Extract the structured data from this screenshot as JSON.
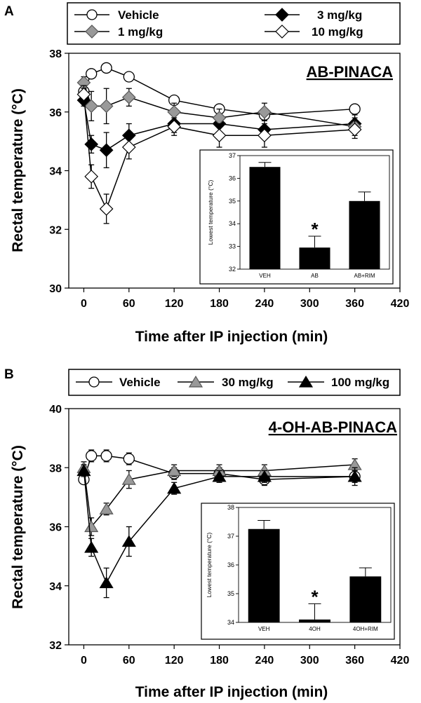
{
  "chart_data": [
    {
      "panel": "A",
      "type": "line",
      "title": "AB-PINACA",
      "xlabel": "Time after IP injection (min)",
      "ylabel": "Rectal temperature (°C)",
      "xlim": [
        -20,
        420
      ],
      "ylim": [
        30,
        38
      ],
      "xticks": [
        0,
        60,
        120,
        180,
        240,
        300,
        360,
        420
      ],
      "yticks": [
        30,
        32,
        34,
        36,
        38
      ],
      "legend": {
        "placement": "top",
        "entries": [
          "Vehicle",
          "3 mg/kg",
          "1 mg/kg",
          "10 mg/kg"
        ]
      },
      "series": [
        {
          "name": "Vehicle",
          "marker": "circle",
          "fill": "#ffffff",
          "x": [
            0,
            10,
            30,
            60,
            120,
            180,
            240,
            360
          ],
          "y": [
            36.7,
            37.3,
            37.5,
            37.2,
            36.4,
            36.1,
            35.9,
            36.1
          ],
          "err": [
            0.1,
            0.1,
            0.1,
            0.1,
            0.15,
            0.15,
            0.15,
            0.1
          ]
        },
        {
          "name": "3 mg/kg",
          "marker": "diamond",
          "fill": "#000000",
          "x": [
            0,
            10,
            30,
            60,
            120,
            180,
            240,
            360
          ],
          "y": [
            36.4,
            34.9,
            34.7,
            35.2,
            35.6,
            35.6,
            35.4,
            35.6
          ],
          "err": [
            0.2,
            0.3,
            0.6,
            0.4,
            0.3,
            0.3,
            0.3,
            0.3
          ]
        },
        {
          "name": "1 mg/kg",
          "marker": "diamond",
          "fill": "#999999",
          "x": [
            0,
            10,
            30,
            60,
            120,
            180,
            240,
            360
          ],
          "y": [
            37.0,
            36.2,
            36.2,
            36.5,
            36.0,
            35.8,
            36.0,
            35.5
          ],
          "err": [
            0.2,
            0.5,
            0.6,
            0.3,
            0.3,
            0.3,
            0.3,
            0.3
          ]
        },
        {
          "name": "10 mg/kg",
          "marker": "diamond",
          "fill": "#ffffff",
          "x": [
            0,
            10,
            30,
            60,
            120,
            180,
            240,
            360
          ],
          "y": [
            36.6,
            33.8,
            32.7,
            34.8,
            35.5,
            35.2,
            35.2,
            35.4
          ],
          "err": [
            0.3,
            0.4,
            0.5,
            0.4,
            0.3,
            0.4,
            0.4,
            0.3
          ]
        }
      ],
      "inset": {
        "type": "bar",
        "ylabel": "Lowest temperature (°C)",
        "ylim": [
          32,
          37
        ],
        "yticks": [
          32,
          33,
          34,
          35,
          36,
          37
        ],
        "categories": [
          "VEH",
          "AB",
          "AB+RIM"
        ],
        "values": [
          36.5,
          32.95,
          35.0
        ],
        "err": [
          0.2,
          0.5,
          0.4
        ],
        "annotation": "*",
        "annotation_category": "AB"
      }
    },
    {
      "panel": "B",
      "type": "line",
      "title": "4-OH-AB-PINACA",
      "xlabel": "Time after IP injection (min)",
      "ylabel": "Rectal temperature (°C)",
      "xlim": [
        -20,
        420
      ],
      "ylim": [
        32,
        40
      ],
      "xticks": [
        0,
        60,
        120,
        180,
        240,
        300,
        360,
        420
      ],
      "yticks": [
        32,
        34,
        36,
        38,
        40
      ],
      "legend": {
        "placement": "top",
        "entries": [
          "Vehicle",
          "30 mg/kg",
          "100 mg/kg"
        ]
      },
      "series": [
        {
          "name": "Vehicle",
          "marker": "circle",
          "fill": "#ffffff",
          "x": [
            0,
            10,
            30,
            60,
            120,
            180,
            240,
            360
          ],
          "y": [
            37.6,
            38.4,
            38.4,
            38.3,
            37.8,
            37.8,
            37.6,
            37.7
          ],
          "err": [
            0.1,
            0.2,
            0.2,
            0.2,
            0.2,
            0.2,
            0.2,
            0.2
          ]
        },
        {
          "name": "30 mg/kg",
          "marker": "triangle",
          "fill": "#999999",
          "x": [
            0,
            10,
            30,
            60,
            120,
            180,
            240,
            360
          ],
          "y": [
            38.0,
            36.0,
            36.6,
            37.6,
            37.9,
            37.9,
            37.9,
            38.1
          ],
          "err": [
            0.2,
            0.3,
            0.2,
            0.3,
            0.2,
            0.2,
            0.2,
            0.2
          ]
        },
        {
          "name": "100 mg/kg",
          "marker": "triangle",
          "fill": "#000000",
          "x": [
            0,
            10,
            30,
            60,
            120,
            180,
            240,
            360
          ],
          "y": [
            37.9,
            35.3,
            34.1,
            35.5,
            37.3,
            37.7,
            37.7,
            37.7
          ],
          "err": [
            0.2,
            0.3,
            0.5,
            0.5,
            0.2,
            0.2,
            0.2,
            0.3
          ]
        }
      ],
      "inset": {
        "type": "bar",
        "ylabel": "Lowest temperature (°C)",
        "ylim": [
          34,
          38
        ],
        "yticks": [
          34,
          35,
          36,
          37,
          38
        ],
        "categories": [
          "VEH",
          "4OH",
          "4OH+RIM"
        ],
        "values": [
          37.25,
          34.1,
          35.6
        ],
        "err": [
          0.3,
          0.55,
          0.3
        ],
        "annotation": "*",
        "annotation_category": "4OH"
      }
    }
  ],
  "panels": [
    {
      "letter": "A",
      "legend": [
        {
          "label": "Vehicle"
        },
        {
          "label": "3 mg/kg"
        },
        {
          "label": "1 mg/kg"
        },
        {
          "label": "10 mg/kg"
        }
      ]
    },
    {
      "letter": "B",
      "legend": [
        {
          "label": "Vehicle"
        },
        {
          "label": "30 mg/kg"
        },
        {
          "label": "100 mg/kg"
        }
      ]
    }
  ]
}
